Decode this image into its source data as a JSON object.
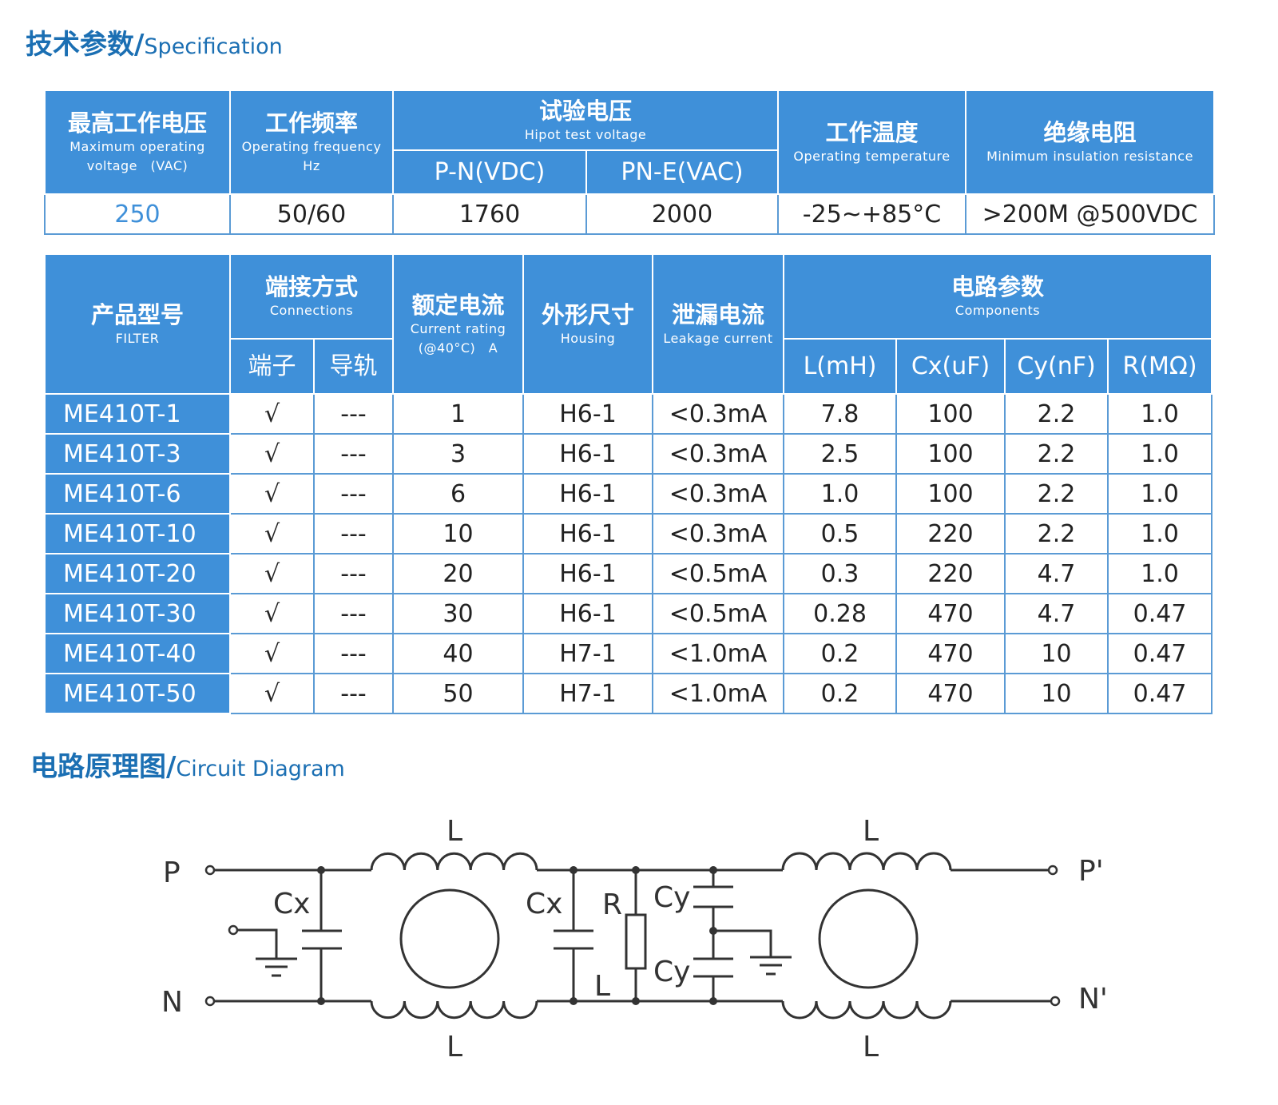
{
  "spec_title": {
    "cn": "技术参数/",
    "en": "Specification"
  },
  "spec_table": {
    "headers": {
      "max_voltage": {
        "cn": "最高工作电压",
        "en1": "Maximum operating",
        "en2": "voltage　(VAC)"
      },
      "frequency": {
        "cn": "工作频率",
        "en1": "Operating frequency",
        "en2": "Hz"
      },
      "hipot": {
        "cn": "试验电压",
        "en": "Hipot test voltage",
        "pn": "P-N(VDC)",
        "pne": "PN-E(VAC)"
      },
      "temperature": {
        "cn": "工作温度",
        "en": "Operating temperature"
      },
      "insulation": {
        "cn": "绝缘电阻",
        "en": "Minimum insulation resistance"
      }
    },
    "values": {
      "max_voltage": "250",
      "frequency": "50/60",
      "pn": "1760",
      "pne": "2000",
      "temperature": "-25~+85°C",
      "insulation": ">200M @500VDC"
    }
  },
  "product_table": {
    "headers": {
      "model": {
        "cn": "产品型号",
        "en": "FILTER"
      },
      "connections": {
        "cn": "端接方式",
        "en": "Connections",
        "terminal": "端子",
        "rail": "导轨"
      },
      "current": {
        "cn": "额定电流",
        "en1": "Current rating",
        "en2": "(@40°C)　A"
      },
      "housing": {
        "cn": "外形尺寸",
        "en": "Housing"
      },
      "leakage": {
        "cn": "泄漏电流",
        "en": "Leakage current"
      },
      "components": {
        "cn": "电路参数",
        "en": "Components",
        "l": "L(mH)",
        "cx": "Cx(uF)",
        "cy": "Cy(nF)",
        "r": "R(MΩ)"
      }
    },
    "rows": [
      {
        "model": "ME410T-1",
        "terminal": "√",
        "rail": "---",
        "current": "1",
        "housing": "H6-1",
        "leakage": "<0.3mA",
        "l": "7.8",
        "cx": "100",
        "cy": "2.2",
        "r": "1.0"
      },
      {
        "model": "ME410T-3",
        "terminal": "√",
        "rail": "---",
        "current": "3",
        "housing": "H6-1",
        "leakage": "<0.3mA",
        "l": "2.5",
        "cx": "100",
        "cy": "2.2",
        "r": "1.0"
      },
      {
        "model": "ME410T-6",
        "terminal": "√",
        "rail": "---",
        "current": "6",
        "housing": "H6-1",
        "leakage": "<0.3mA",
        "l": "1.0",
        "cx": "100",
        "cy": "2.2",
        "r": "1.0"
      },
      {
        "model": "ME410T-10",
        "terminal": "√",
        "rail": "---",
        "current": "10",
        "housing": "H6-1",
        "leakage": "<0.3mA",
        "l": "0.5",
        "cx": "220",
        "cy": "2.2",
        "r": "1.0"
      },
      {
        "model": "ME410T-20",
        "terminal": "√",
        "rail": "---",
        "current": "20",
        "housing": "H6-1",
        "leakage": "<0.5mA",
        "l": "0.3",
        "cx": "220",
        "cy": "4.7",
        "r": "1.0"
      },
      {
        "model": "ME410T-30",
        "terminal": "√",
        "rail": "---",
        "current": "30",
        "housing": "H6-1",
        "leakage": "<0.5mA",
        "l": "0.28",
        "cx": "470",
        "cy": "4.7",
        "r": "0.47"
      },
      {
        "model": "ME410T-40",
        "terminal": "√",
        "rail": "---",
        "current": "40",
        "housing": "H7-1",
        "leakage": "<1.0mA",
        "l": "0.2",
        "cx": "470",
        "cy": "10",
        "r": "0.47"
      },
      {
        "model": "ME410T-50",
        "terminal": "√",
        "rail": "---",
        "current": "50",
        "housing": "H7-1",
        "leakage": "<1.0mA",
        "l": "0.2",
        "cx": "470",
        "cy": "10",
        "r": "0.47"
      }
    ]
  },
  "circuit_title": {
    "cn": "电路原理图/",
    "en": "Circuit Diagram"
  },
  "circuit": {
    "p": "P",
    "n": "N",
    "p_out": "P'",
    "n_out": "N'",
    "l": "L",
    "cx": "Cx",
    "r": "R",
    "cy": "Cy"
  },
  "colors": {
    "header_blue": "#3f90d9",
    "title_blue": "#1b6fb3"
  }
}
